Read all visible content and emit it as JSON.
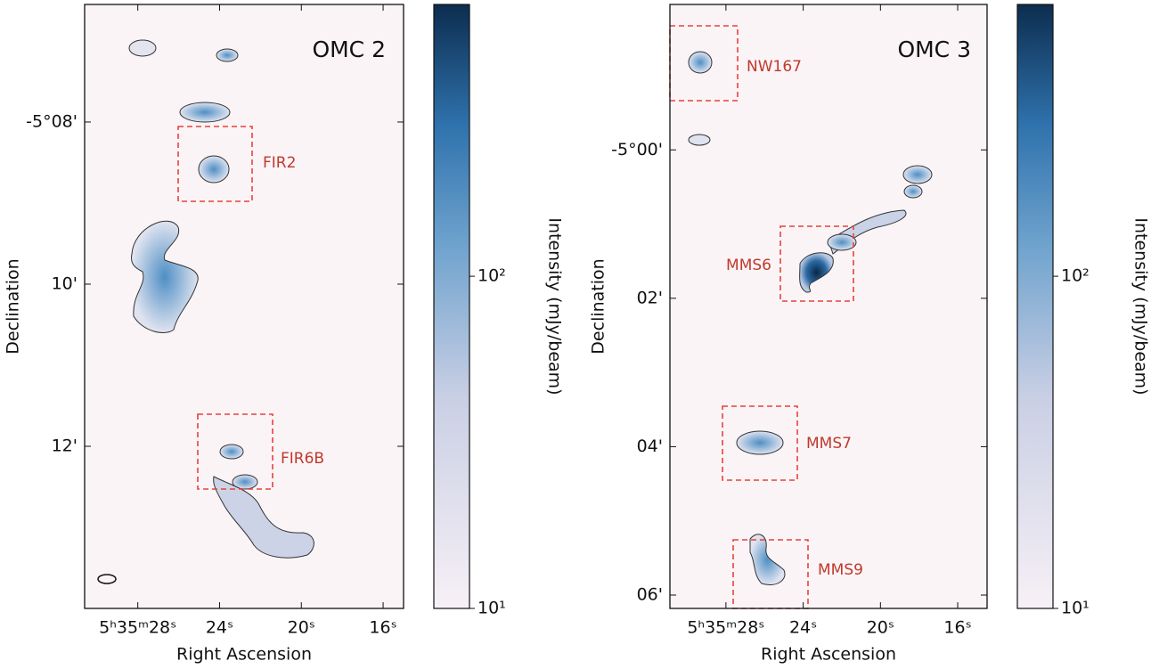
{
  "figure": {
    "panels": [
      {
        "title": "OMC 2",
        "xlabel": "Right Ascension",
        "ylabel": "Declination",
        "xlim": [
          30.6,
          15.0
        ],
        "ylim": [
          6.55,
          14.0
        ],
        "xticks": [
          {
            "value": 28,
            "label": "5ʰ35ᵐ28ˢ"
          },
          {
            "value": 24,
            "label": "24ˢ"
          },
          {
            "value": 20,
            "label": "20ˢ"
          },
          {
            "value": 16,
            "label": "16ˢ"
          }
        ],
        "yticks": [
          {
            "value": 8,
            "label": "-5°08'"
          },
          {
            "value": 10,
            "label": "10'"
          },
          {
            "value": 12,
            "label": "12'"
          }
        ],
        "regions": [
          "FIR2",
          "FIR6B"
        ],
        "colorbar": {
          "label": "Intensity (mJy/beam)",
          "scale": "log",
          "lim": [
            10,
            658
          ],
          "ticks": [
            {
              "value": 10,
              "label": "10¹"
            },
            {
              "value": 100,
              "label": "10²"
            }
          ]
        }
      },
      {
        "title": "OMC 3",
        "xlabel": "Right Ascension",
        "ylabel": "Declination",
        "xlim": [
          30.9,
          14.48
        ],
        "ylim": [
          -1.96,
          6.18
        ],
        "xticks": [
          {
            "value": 28,
            "label": "5ʰ35ᵐ28ˢ"
          },
          {
            "value": 24,
            "label": "24ˢ"
          },
          {
            "value": 20,
            "label": "20ˢ"
          },
          {
            "value": 16,
            "label": "16ˢ"
          }
        ],
        "yticks": [
          {
            "value": 0,
            "label": "-5°00'"
          },
          {
            "value": 2,
            "label": "02'"
          },
          {
            "value": 4,
            "label": "04'"
          },
          {
            "value": 6,
            "label": "06'"
          }
        ],
        "regions": [
          "NW167",
          "MMS6",
          "MMS7",
          "MMS9"
        ],
        "colorbar": {
          "label": "Intensity (mJy/beam)",
          "scale": "log",
          "lim": [
            10,
            658
          ],
          "ticks": [
            {
              "value": 10,
              "label": "10¹"
            },
            {
              "value": 100,
              "label": "10²"
            }
          ]
        }
      }
    ]
  }
}
